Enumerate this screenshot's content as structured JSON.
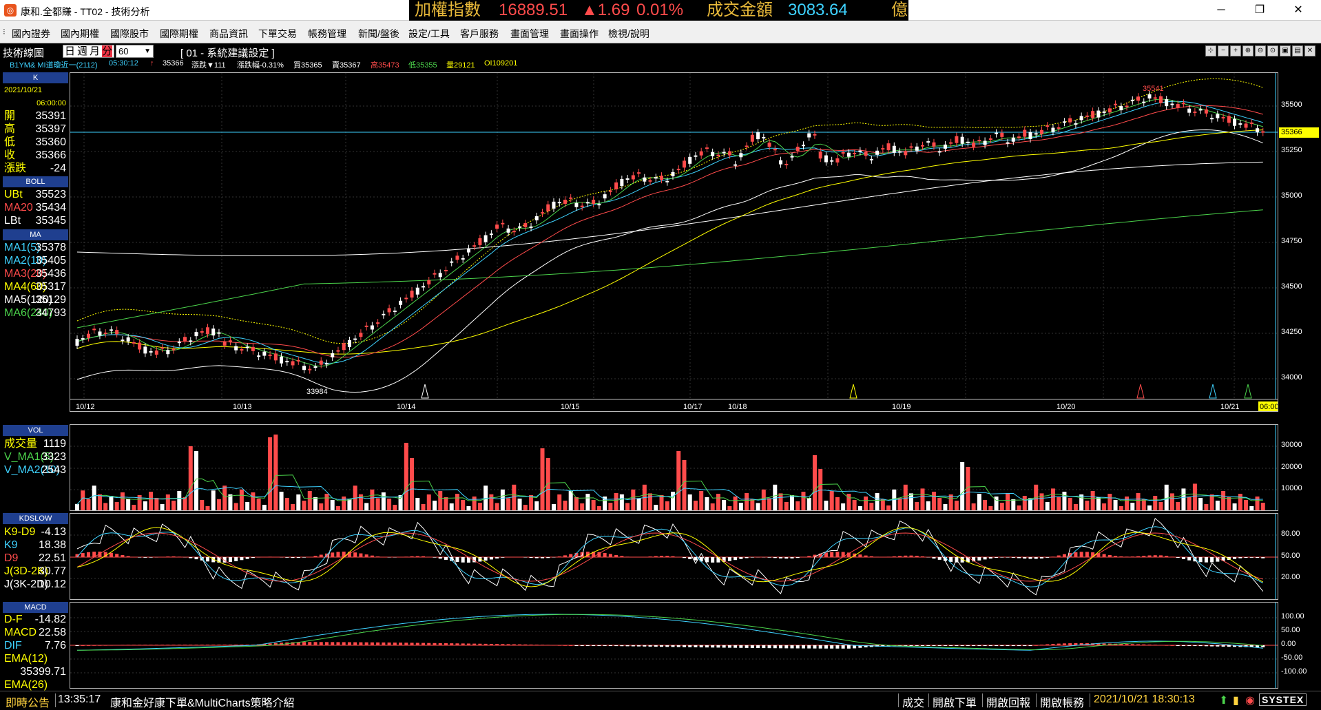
{
  "window": {
    "title": "康和.全都賺 - TT02 - 技術分析",
    "minimize": "─",
    "maximize": "❐",
    "close": "✕"
  },
  "ticker": {
    "index_label": "加權指數",
    "index_value": "16889.51",
    "change": "▲1.69",
    "change_pct": "0.01%",
    "turnover_label": "成交金額",
    "turnover_value": "3083.64",
    "unit": "億"
  },
  "menu": [
    "國內證券",
    "國內期權",
    "國際股市",
    "國際期權",
    "商品資訊",
    "下單交易",
    "帳務管理",
    "新聞/盤後",
    "設定/工具",
    "客戶服務",
    "畫面管理",
    "畫面操作",
    "檢視/說明"
  ],
  "chart_header": {
    "title": "技術線圖",
    "periods": [
      "日",
      "週",
      "月",
      "分"
    ],
    "selected_period": "分",
    "minute_value": "60",
    "strategy": "[ 01 - 系統建議設定 ]"
  },
  "infoline": {
    "symbol": "B1YM& MI道瓊近一(2112)",
    "time": "05:30:12",
    "flag": "↑",
    "last": "35366",
    "change": "漲跌▼111",
    "change_pct": "漲跌幅-0.31%",
    "bid": "買35365",
    "ask": "賣35367",
    "high": "高35473",
    "low": "低35355",
    "volume": "量29121",
    "oi": "OI109201"
  },
  "left_panel": {
    "k_head": "K",
    "date": "2021/10/21",
    "time": "06:00:00",
    "k_rows": [
      {
        "label": "開",
        "value": "35391"
      },
      {
        "label": "高",
        "value": "35397"
      },
      {
        "label": "低",
        "value": "35360"
      },
      {
        "label": "收",
        "value": "35366"
      },
      {
        "label": "漲跌",
        "value": "-24"
      }
    ],
    "boll_head": "BOLL",
    "boll_rows": [
      {
        "label": "UBt",
        "value": "35523"
      },
      {
        "label": "MA20",
        "value": "35434"
      },
      {
        "label": "LBt",
        "value": "35345"
      }
    ],
    "ma_head": "MA",
    "ma_rows": [
      {
        "label": "MA1(5)",
        "value": "35378"
      },
      {
        "label": "MA2(10)",
        "value": "35405"
      },
      {
        "label": "MA3(20)",
        "value": "35436"
      },
      {
        "label": "MA4(60)",
        "value": "35317"
      },
      {
        "label": "MA5(120)",
        "value": "35129"
      },
      {
        "label": "MA6(240)",
        "value": "34793"
      }
    ],
    "vol_head": "VOL",
    "vol_rows": [
      {
        "label": "成交量",
        "value": "1119"
      },
      {
        "label": "V_MA1(5)",
        "value": "3323"
      },
      {
        "label": "V_MA2(10)",
        "value": "2543"
      }
    ],
    "kd_head": "KDSLOW",
    "kd_rows": [
      {
        "label": "K9-D9",
        "value": "-4.13"
      },
      {
        "label": "K9",
        "value": "18.38"
      },
      {
        "label": "D9",
        "value": "22.51"
      },
      {
        "label": "J(3D-2K)",
        "value": "30.77"
      },
      {
        "label": "J(3K-2D)",
        "value": "10.12"
      }
    ],
    "macd_head": "MACD",
    "macd_rows": [
      {
        "label": "D-F",
        "value": "-14.82"
      },
      {
        "label": "MACD",
        "value": "22.58"
      },
      {
        "label": "DIF",
        "value": "7.76"
      },
      {
        "label": "EMA(12)",
        "value": ""
      },
      {
        "label": "",
        "value": "35399.71"
      },
      {
        "label": "EMA(26)",
        "value": ""
      }
    ]
  },
  "price_axis": [
    "35500",
    "35250",
    "35000",
    "34750",
    "34500",
    "34250",
    "34000"
  ],
  "last_price_tag": "35366",
  "high_label": "35541",
  "low_label": "33984",
  "date_labels": [
    "10/12",
    "10/13",
    "10/14",
    "10/15",
    "10/17",
    "10/18",
    "10/19",
    "10/20",
    "10/21"
  ],
  "current_time_tag": "06:00",
  "vol_axis": [
    "30000",
    "20000",
    "10000"
  ],
  "kd_axis": [
    "80.00",
    "50.00",
    "20.00"
  ],
  "macd_axis": [
    "100.00",
    "50.00",
    "0.00",
    "-50.00",
    "-100.00"
  ],
  "status": {
    "notice": "即時公告",
    "time": "13:35:17",
    "message": "康和金好康下單&MultiCharts策略介紹",
    "btn_trade": "成交",
    "btn_order": "開啟下單",
    "btn_report": "開啟回報",
    "btn_account": "開啟帳務",
    "datetime": "2021/10/21 18:30:13",
    "brand": "SYSTEX"
  },
  "colors": {
    "up": "#ff4b4b",
    "down": "#ffffff",
    "accent": "#ffff00",
    "head": "#1f3f8f"
  }
}
